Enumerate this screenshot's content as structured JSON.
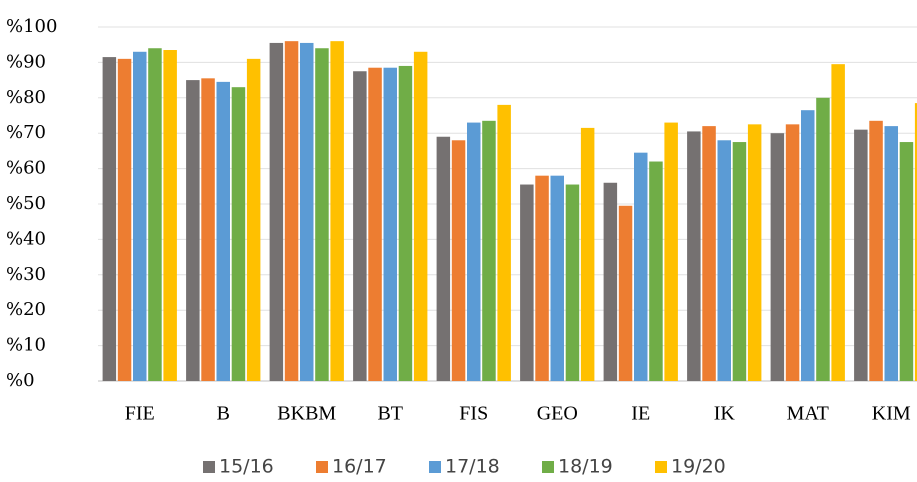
{
  "chart_data": {
    "type": "bar",
    "categories": [
      "FIE",
      "B",
      "BKBM",
      "BT",
      "FIS",
      "GEO",
      "IE",
      "IK",
      "MAT",
      "KIM"
    ],
    "series": [
      {
        "name": "15/16",
        "color": "#757171",
        "values": [
          91.5,
          85,
          95.5,
          87.5,
          69,
          55.5,
          56,
          70.5,
          70,
          71
        ]
      },
      {
        "name": "16/17",
        "color": "#ed7d31",
        "values": [
          91,
          85.5,
          96,
          88.5,
          68,
          58,
          49.5,
          72,
          72.5,
          73.5
        ]
      },
      {
        "name": "17/18",
        "color": "#5b9bd5",
        "values": [
          93,
          84.5,
          95.5,
          88.5,
          73,
          58,
          64.5,
          68,
          76.5,
          72
        ]
      },
      {
        "name": "18/19",
        "color": "#70ad47",
        "values": [
          94,
          83,
          94,
          89,
          73.5,
          55.5,
          62,
          67.5,
          80,
          67.5
        ]
      },
      {
        "name": "19/20",
        "color": "#ffc000",
        "values": [
          93.5,
          91,
          96,
          93,
          78,
          71.5,
          73,
          72.5,
          89.5,
          78.5
        ]
      }
    ],
    "ylim": [
      0,
      100
    ],
    "yticks": [
      {
        "value": 0,
        "label": "%0"
      },
      {
        "value": 10,
        "label": "%10"
      },
      {
        "value": 20,
        "label": "%20"
      },
      {
        "value": 30,
        "label": "%30"
      },
      {
        "value": 40,
        "label": "%40"
      },
      {
        "value": 50,
        "label": "%50"
      },
      {
        "value": 60,
        "label": "%60"
      },
      {
        "value": 70,
        "label": "%70"
      },
      {
        "value": 80,
        "label": "%80"
      },
      {
        "value": 90,
        "label": "%90"
      },
      {
        "value": 100,
        "label": "%100"
      }
    ],
    "grid": true,
    "legend": "bottom"
  }
}
